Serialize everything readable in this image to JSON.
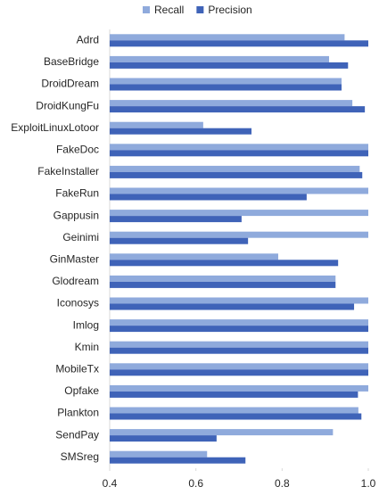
{
  "chart_data": {
    "type": "hbar",
    "categories": [
      "Adrd",
      "BaseBridge",
      "DroidDream",
      "DroidKungFu",
      "ExploitLinuxLotoor",
      "FakeDoc",
      "FakeInstaller",
      "FakeRun",
      "Gappusin",
      "Geinimi",
      "GinMaster",
      "Glodream",
      "Iconosys",
      "Imlog",
      "Kmin",
      "MobileTx",
      "Opfake",
      "Plankton",
      "SendPay",
      "SMSreg"
    ],
    "series": [
      {
        "name": "Recall",
        "color": "#8faadc",
        "values": [
          0.945,
          0.909,
          0.938,
          0.963,
          0.617,
          1,
          0.98,
          1,
          1,
          1,
          0.791,
          0.924,
          1,
          1,
          1,
          1,
          1,
          0.977,
          0.918,
          0.626
        ]
      },
      {
        "name": "Precision",
        "color": "#3f63b8",
        "values": [
          1,
          0.953,
          0.938,
          0.992,
          0.729,
          1,
          0.986,
          0.857,
          0.706,
          0.721,
          0.93,
          0.924,
          0.967,
          1,
          1,
          1,
          0.976,
          0.984,
          0.648,
          0.715
        ]
      }
    ],
    "xlim": [
      0.4,
      1
    ],
    "xticks": [
      0.4,
      0.6,
      0.8,
      {
        "value": 1,
        "label": "1.0"
      }
    ],
    "grid": false,
    "legend": "top"
  }
}
